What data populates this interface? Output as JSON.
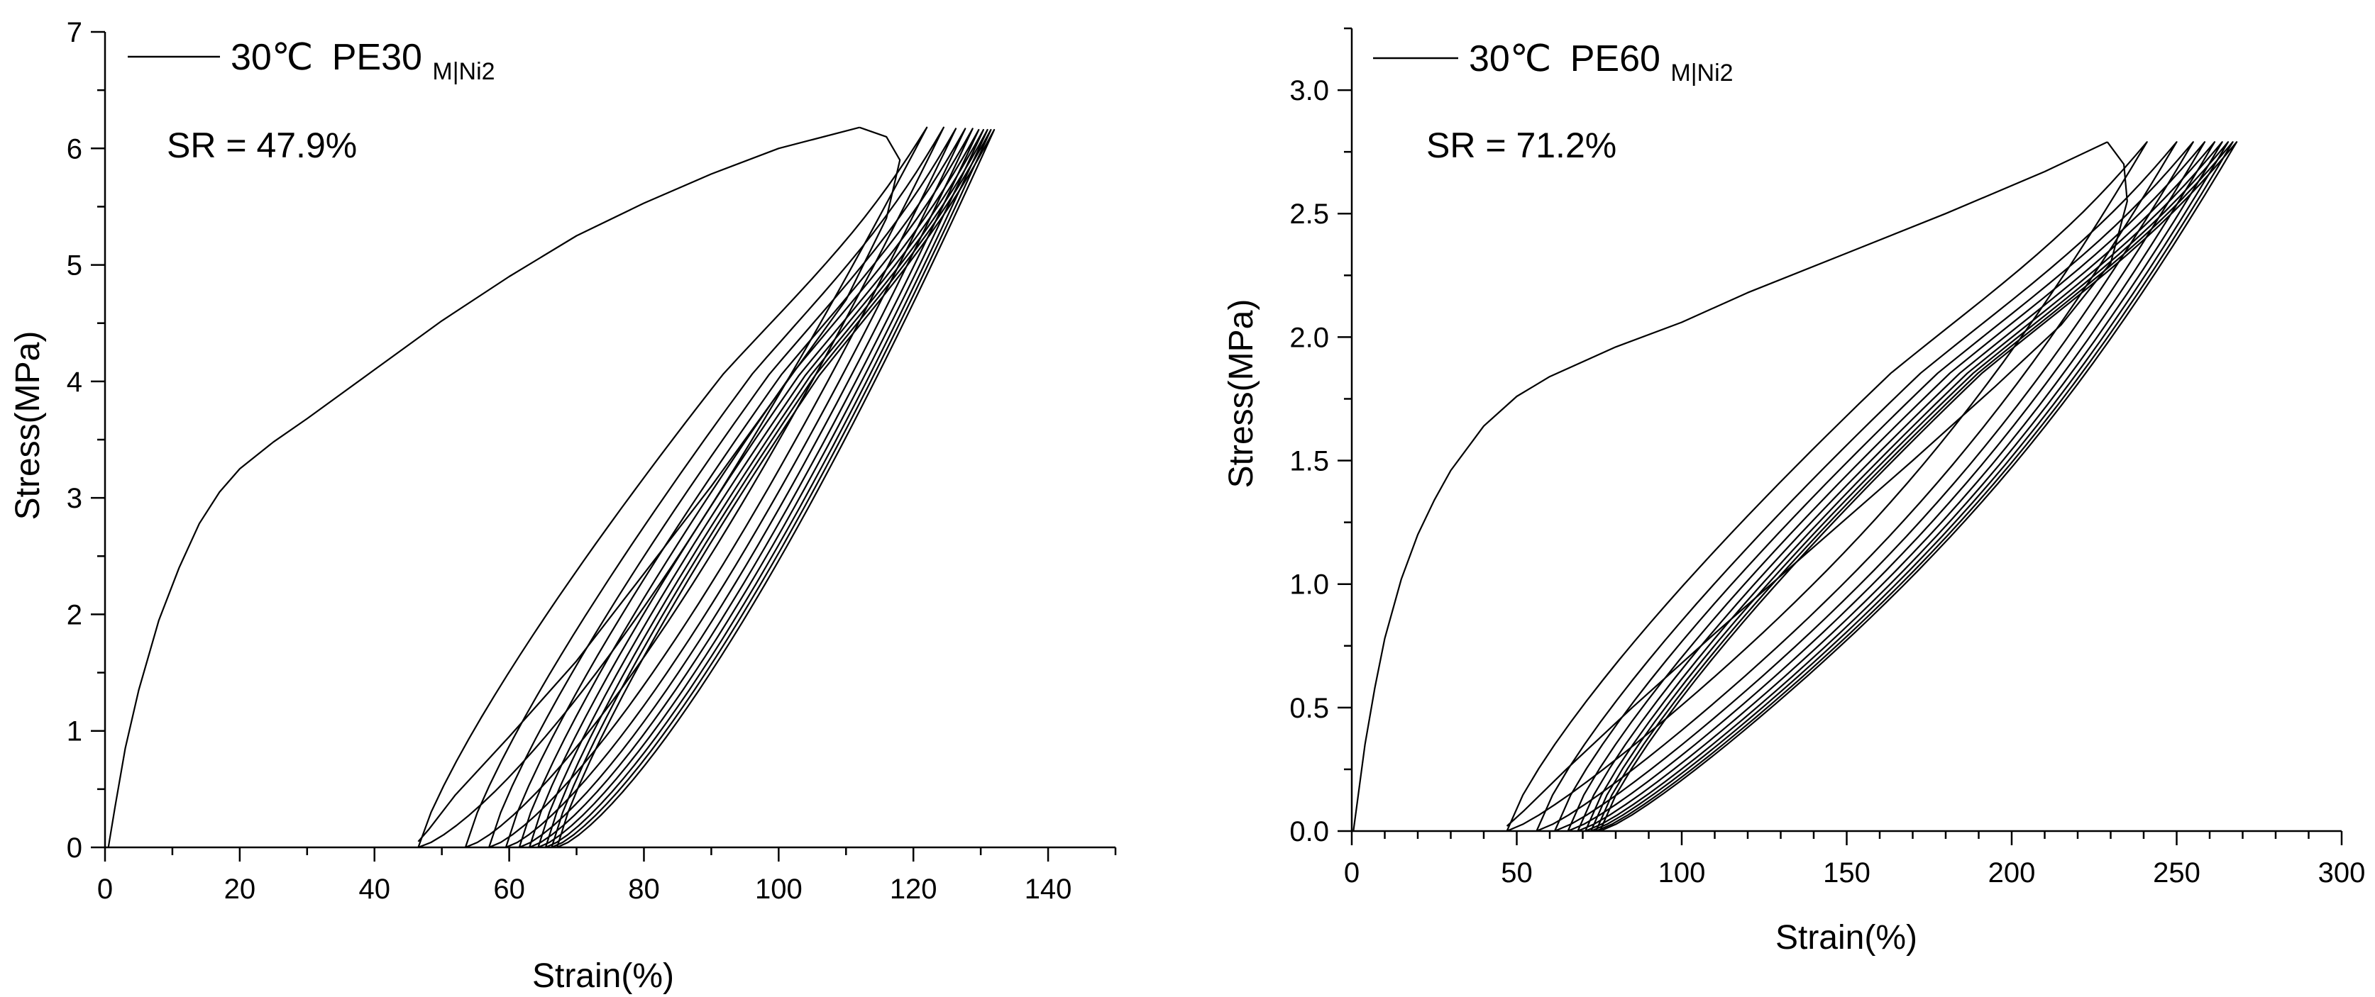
{
  "chart_data": [
    {
      "type": "line",
      "title": "",
      "xlabel": "Strain(%)",
      "ylabel": "Stress(MPa)",
      "xlim": [
        0,
        150
      ],
      "ylim": [
        0,
        7
      ],
      "xticks": [
        0,
        20,
        40,
        60,
        80,
        100,
        120,
        140
      ],
      "yticks": [
        0,
        1,
        2,
        3,
        4,
        5,
        6,
        7
      ],
      "legend": {
        "temp": "30℃",
        "name": "PE30",
        "subscript": "M|Ni2",
        "placement": "top-left"
      },
      "annotation": "SR = 47.9%",
      "grid": false,
      "series": {
        "first_loading": {
          "x": [
            0.5,
            1.5,
            3,
            5,
            8,
            11,
            14,
            17,
            20,
            25,
            30,
            40,
            50,
            60,
            70,
            80,
            90,
            100,
            112
          ],
          "y": [
            0,
            0.35,
            0.85,
            1.35,
            1.95,
            2.4,
            2.78,
            3.05,
            3.25,
            3.48,
            3.68,
            4.1,
            4.52,
            4.9,
            5.25,
            5.53,
            5.78,
            6.0,
            6.18
          ]
        },
        "first_unloading": {
          "x": [
            112,
            116,
            118,
            116,
            110,
            100,
            90,
            80,
            70,
            60,
            52,
            48,
            46.5
          ],
          "y": [
            6.18,
            6.1,
            5.9,
            5.4,
            4.7,
            3.9,
            3.1,
            2.35,
            1.6,
            0.95,
            0.45,
            0.15,
            0.05
          ]
        },
        "cycles": [
          {
            "min_strain": 46.5,
            "max_strain": 122,
            "peak_stress": 6.18
          },
          {
            "min_strain": 53.5,
            "max_strain": 124.5,
            "peak_stress": 6.18
          },
          {
            "min_strain": 57,
            "max_strain": 126.3,
            "peak_stress": 6.17
          },
          {
            "min_strain": 59.5,
            "max_strain": 127.7,
            "peak_stress": 6.17
          },
          {
            "min_strain": 61.5,
            "max_strain": 128.8,
            "peak_stress": 6.17
          },
          {
            "min_strain": 63,
            "max_strain": 129.7,
            "peak_stress": 6.16
          },
          {
            "min_strain": 64.3,
            "max_strain": 130.4,
            "peak_stress": 6.16
          },
          {
            "min_strain": 65.4,
            "max_strain": 131,
            "peak_stress": 6.16
          },
          {
            "min_strain": 66.3,
            "max_strain": 131.5,
            "peak_stress": 6.16
          },
          {
            "min_strain": 67.1,
            "max_strain": 132,
            "peak_stress": 6.16
          }
        ]
      }
    },
    {
      "type": "line",
      "title": "",
      "xlabel": "Strain(%)",
      "ylabel": "Stress(MPa)",
      "xlim": [
        0,
        300
      ],
      "ylim": [
        0,
        3.25
      ],
      "xticks": [
        0,
        50,
        100,
        150,
        200,
        250,
        300
      ],
      "yticks": [
        "0.0",
        "0.5",
        "1.0",
        "1.5",
        "2.0",
        "2.5",
        "3.0"
      ],
      "legend": {
        "temp": "30℃",
        "name": "PE60",
        "subscript": "M|Ni2",
        "placement": "top-left"
      },
      "annotation": "SR = 71.2%",
      "grid": false,
      "series": {
        "first_loading": {
          "x": [
            0.5,
            2,
            4,
            7,
            10,
            15,
            20,
            25,
            30,
            40,
            50,
            60,
            80,
            100,
            120,
            150,
            180,
            210,
            229
          ],
          "y": [
            0,
            0.15,
            0.35,
            0.58,
            0.78,
            1.02,
            1.2,
            1.34,
            1.46,
            1.64,
            1.76,
            1.84,
            1.96,
            2.06,
            2.18,
            2.34,
            2.5,
            2.67,
            2.79
          ]
        },
        "first_unloading": {
          "x": [
            229,
            234,
            235,
            230,
            215,
            195,
            170,
            140,
            110,
            85,
            65,
            52,
            47
          ],
          "y": [
            2.79,
            2.7,
            2.55,
            2.3,
            2.05,
            1.8,
            1.5,
            1.15,
            0.8,
            0.5,
            0.25,
            0.08,
            0.02
          ]
        },
        "cycles": [
          {
            "min_strain": 47,
            "max_strain": 241,
            "peak_stress": 2.79
          },
          {
            "min_strain": 56,
            "max_strain": 250,
            "peak_stress": 2.79
          },
          {
            "min_strain": 61.5,
            "max_strain": 255,
            "peak_stress": 2.79
          },
          {
            "min_strain": 65.5,
            "max_strain": 258.5,
            "peak_stress": 2.79
          },
          {
            "min_strain": 68.5,
            "max_strain": 261.5,
            "peak_stress": 2.79
          },
          {
            "min_strain": 70.8,
            "max_strain": 263.8,
            "peak_stress": 2.79
          },
          {
            "min_strain": 72.5,
            "max_strain": 265.6,
            "peak_stress": 2.79
          },
          {
            "min_strain": 74,
            "max_strain": 267,
            "peak_stress": 2.79
          },
          {
            "min_strain": 75.2,
            "max_strain": 268.2,
            "peak_stress": 2.79
          }
        ]
      }
    }
  ]
}
